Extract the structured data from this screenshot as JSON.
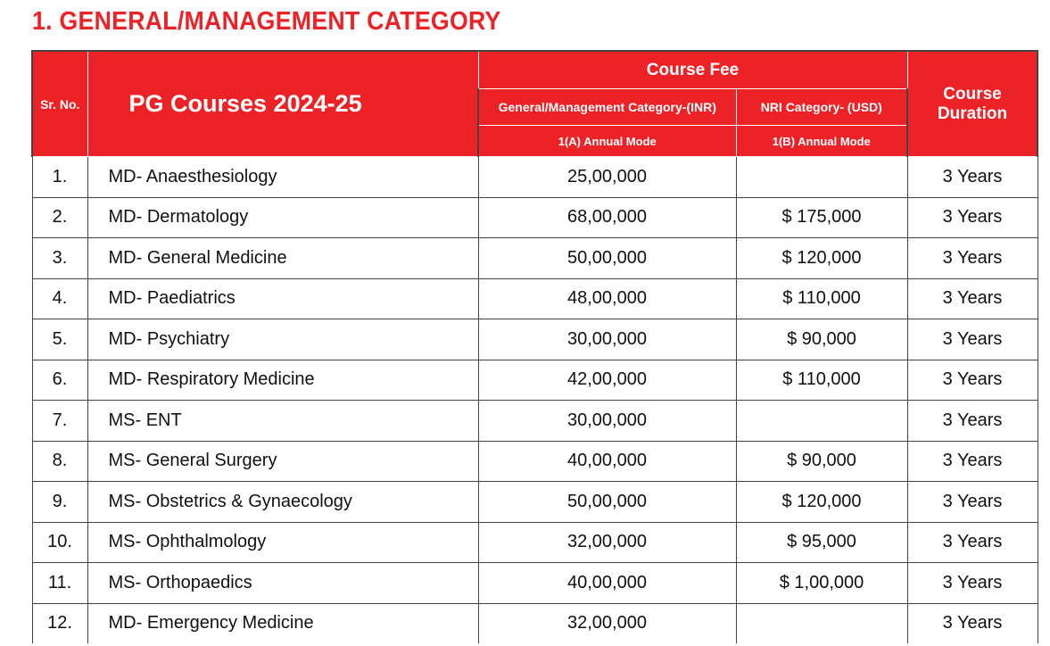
{
  "title": "1. GENERAL/MANAGEMENT CATEGORY",
  "header": {
    "sr_no": "Sr. No.",
    "courses": "PG Courses 2024-25",
    "course_fee": "Course Fee",
    "general_category": "General/Management Category-(INR)",
    "nri_category": "NRI Category- (USD)",
    "general_mode": "1(A) Annual Mode",
    "nri_mode": "1(B) Annual Mode",
    "duration": "Course Duration"
  },
  "rows": [
    {
      "sr": "1.",
      "course": "MD- Anaesthesiology",
      "inr": "25,00,000",
      "usd": "",
      "duration": "3 Years"
    },
    {
      "sr": "2.",
      "course": "MD- Dermatology",
      "inr": "68,00,000",
      "usd": "$ 175,000",
      "duration": "3 Years"
    },
    {
      "sr": "3.",
      "course": "MD- General Medicine",
      "inr": "50,00,000",
      "usd": "$ 120,000",
      "duration": "3 Years"
    },
    {
      "sr": "4.",
      "course": "MD- Paediatrics",
      "inr": "48,00,000",
      "usd": "$ 110,000",
      "duration": "3 Years"
    },
    {
      "sr": "5.",
      "course": "MD- Psychiatry",
      "inr": "30,00,000",
      "usd": "$ 90,000",
      "duration": "3 Years"
    },
    {
      "sr": "6.",
      "course": "MD- Respiratory Medicine",
      "inr": "42,00,000",
      "usd": "$ 110,000",
      "duration": "3 Years"
    },
    {
      "sr": "7.",
      "course": "MS- ENT",
      "inr": "30,00,000",
      "usd": "",
      "duration": "3 Years"
    },
    {
      "sr": "8.",
      "course": "MS- General Surgery",
      "inr": "40,00,000",
      "usd": "$ 90,000",
      "duration": "3 Years"
    },
    {
      "sr": "9.",
      "course": "MS- Obstetrics & Gynaecology",
      "inr": "50,00,000",
      "usd": "$ 120,000",
      "duration": "3 Years"
    },
    {
      "sr": "10.",
      "course": "MS- Ophthalmology",
      "inr": "32,00,000",
      "usd": "$ 95,000",
      "duration": "3 Years"
    },
    {
      "sr": "11.",
      "course": "MS- Orthopaedics",
      "inr": "40,00,000",
      "usd": "$ 1,00,000",
      "duration": "3 Years"
    },
    {
      "sr": "12.",
      "course": "MD- Emergency Medicine",
      "inr": "32,00,000",
      "usd": "",
      "duration": "3 Years"
    }
  ],
  "colors": {
    "accent": "#ED2227"
  }
}
